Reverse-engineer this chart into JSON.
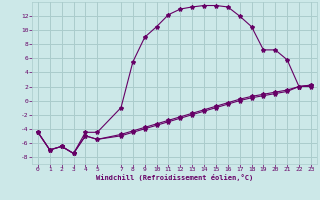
{
  "xlabel": "Windchill (Refroidissement éolien,°C)",
  "bg_color": "#cce8e8",
  "grid_color": "#aacccc",
  "line_color": "#660066",
  "xlim": [
    -0.5,
    23.5
  ],
  "ylim": [
    -9,
    14
  ],
  "x_ticks": [
    0,
    1,
    2,
    3,
    4,
    5,
    7,
    8,
    9,
    10,
    11,
    12,
    13,
    14,
    15,
    16,
    17,
    18,
    19,
    20,
    21,
    22,
    23
  ],
  "y_ticks": [
    -8,
    -6,
    -4,
    -2,
    0,
    2,
    4,
    6,
    8,
    10,
    12
  ],
  "curve1_x": [
    0,
    1,
    2,
    3,
    4,
    5,
    7,
    8,
    9,
    10,
    11,
    12,
    13,
    14,
    15,
    16,
    17,
    18,
    19,
    20,
    21,
    22,
    23
  ],
  "curve1_y": [
    -4.5,
    -7.0,
    -6.5,
    -7.5,
    -4.5,
    -4.5,
    -1.0,
    5.5,
    9.0,
    10.5,
    12.2,
    13.0,
    13.3,
    13.5,
    13.5,
    13.3,
    12.0,
    10.5,
    7.2,
    7.2,
    5.8,
    2.0,
    2.0
  ],
  "curve2_x": [
    0,
    1,
    2,
    3,
    4,
    5,
    7,
    8,
    9,
    10,
    11,
    12,
    13,
    14,
    15,
    16,
    17,
    18,
    19,
    20,
    21,
    22,
    23
  ],
  "curve2_y": [
    -4.5,
    -7.0,
    -6.5,
    -7.5,
    -5.0,
    -5.5,
    -4.8,
    -4.3,
    -3.8,
    -3.3,
    -2.8,
    -2.3,
    -1.8,
    -1.3,
    -0.8,
    -0.3,
    0.2,
    0.6,
    0.9,
    1.2,
    1.5,
    2.0,
    2.2
  ],
  "curve3_x": [
    0,
    1,
    2,
    3,
    4,
    5,
    7,
    8,
    9,
    10,
    11,
    12,
    13,
    14,
    15,
    16,
    17,
    18,
    19,
    20,
    21,
    22,
    23
  ],
  "curve3_y": [
    -4.5,
    -7.0,
    -6.5,
    -7.5,
    -5.0,
    -5.5,
    -5.0,
    -4.5,
    -4.0,
    -3.5,
    -3.0,
    -2.5,
    -2.0,
    -1.5,
    -1.0,
    -0.5,
    0.0,
    0.4,
    0.7,
    1.0,
    1.3,
    2.0,
    2.2
  ]
}
